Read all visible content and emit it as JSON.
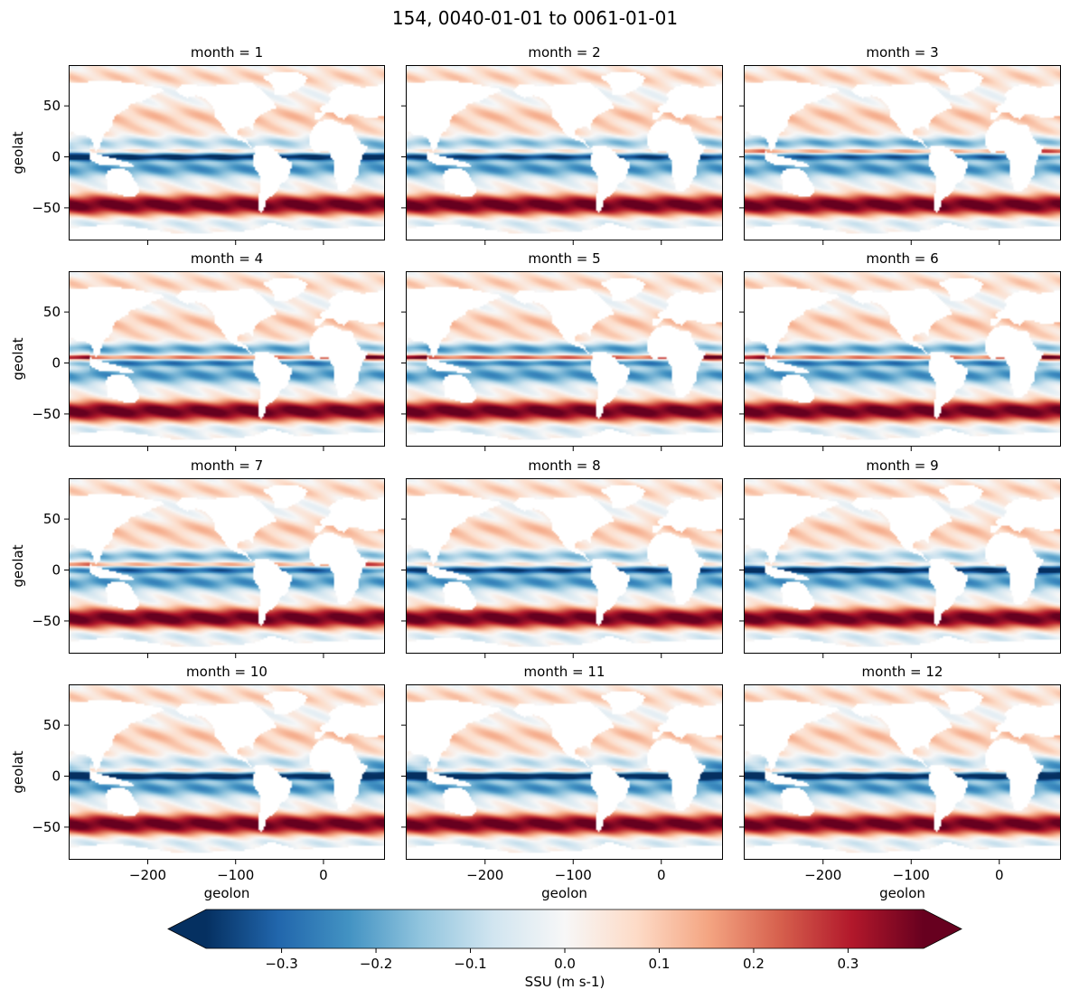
{
  "chart_data": {
    "type": "heatmap",
    "title": "154, 0040-01-01 to 0061-01-01",
    "panel_titles": [
      "month = 1",
      "month = 2",
      "month = 3",
      "month = 4",
      "month = 5",
      "month = 6",
      "month = 7",
      "month = 8",
      "month = 9",
      "month = 10",
      "month = 11",
      "month = 12"
    ],
    "xlabel": "geolon",
    "ylabel": "geolat",
    "xlim": [
      -290,
      70
    ],
    "ylim": [
      -82,
      90
    ],
    "xticks": [
      -200,
      -100,
      0
    ],
    "xtick_labels": [
      "−200",
      "−100",
      "0"
    ],
    "yticks": [
      50,
      0,
      -50
    ],
    "ytick_labels": [
      "50",
      "0",
      "−50"
    ],
    "colorbar": {
      "label": "SSU (m s-1)",
      "vmin": -0.38,
      "vmax": 0.38,
      "ticks": [
        -0.3,
        -0.2,
        -0.1,
        0.0,
        0.1,
        0.2,
        0.3
      ],
      "tick_labels": [
        "−0.3",
        "−0.2",
        "−0.1",
        "0.0",
        "0.1",
        "0.2",
        "0.3"
      ],
      "colormap": "RdBu_r",
      "extend": "both",
      "colors": [
        "#053061",
        "#2166ac",
        "#4393c3",
        "#92c5de",
        "#d1e5f0",
        "#f7f7f7",
        "#fddbc7",
        "#f4a582",
        "#d6604d",
        "#b2182b",
        "#67001f"
      ]
    }
  }
}
